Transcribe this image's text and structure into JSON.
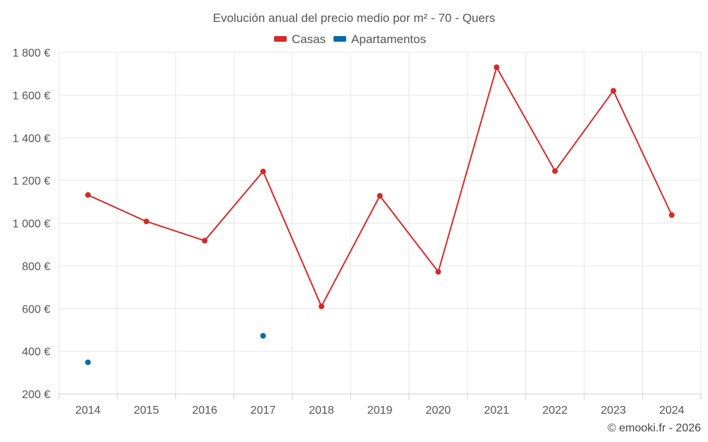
{
  "chart_data": {
    "type": "line",
    "title": "Evolución anual del precio medio por m² - 70 - Quers",
    "categories": [
      "2014",
      "2015",
      "2016",
      "2017",
      "2018",
      "2019",
      "2020",
      "2021",
      "2022",
      "2023",
      "2024"
    ],
    "y_ticks": [
      200,
      400,
      600,
      800,
      1000,
      1200,
      1400,
      1600,
      1800
    ],
    "y_tick_labels": [
      "200 €",
      "400 €",
      "600 €",
      "800 €",
      "1 000 €",
      "1 200 €",
      "1 400 €",
      "1 600 €",
      "1 800 €"
    ],
    "ylim": [
      200,
      1800
    ],
    "grid": true,
    "legend_position": "top-center",
    "series": [
      {
        "name": "Casas",
        "color": "#d22b2b",
        "values": [
          1132,
          1008,
          918,
          1242,
          610,
          1128,
          772,
          1730,
          1244,
          1620,
          1038
        ],
        "line": true
      },
      {
        "name": "Apartamentos",
        "color": "#0b6aa2",
        "values": [
          348,
          null,
          null,
          472,
          null,
          null,
          null,
          null,
          null,
          null,
          null
        ],
        "line": false
      }
    ]
  },
  "credit": "© emooki.fr - 2026"
}
